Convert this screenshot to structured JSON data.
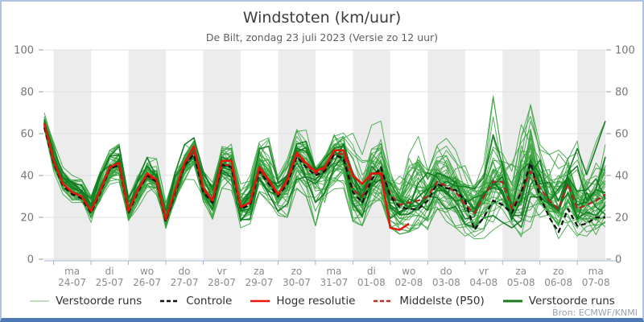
{
  "window": {
    "title": "Windstoten (km/uur)",
    "subtitle": "De Bilt, zondag 23 juli 2023 (Versie zo 12 uur)",
    "source": "Bron: ECMWF/KNMI"
  },
  "legend": {
    "items": [
      {
        "label": "Verstoorde runs",
        "color": "#aed6a8",
        "dash": "",
        "width": 1.5
      },
      {
        "label": "Controle",
        "color": "#111111",
        "dash": "5 3",
        "width": 2.5
      },
      {
        "label": "Hoge resolutie",
        "color": "#e8150c",
        "dash": "",
        "width": 2.5
      },
      {
        "label": "Middelste (P50)",
        "color": "#a93226",
        "dash": "5 3",
        "width": 2.5
      },
      {
        "label": "Verstoorde runs",
        "color": "#1a7a1e",
        "dash": "",
        "width": 3
      }
    ]
  },
  "colors": {
    "ensemble_light": "#36a23d",
    "ensemble_dark": "#107a20",
    "hres": "#e8150c",
    "controle": "#111111",
    "p50": "#b22222",
    "band": "#ececec",
    "grid": "#e0e0e0",
    "axis_line": "#b3c6dd",
    "tick": "#9db3cc",
    "ylabel": "#767676",
    "xlabel": "#8a8a8a"
  },
  "chart_data": {
    "type": "line",
    "title": "Windstoten (km/uur)",
    "subtitle": "De Bilt, zondag 23 juli 2023 (Versie zo 12 uur)",
    "ylabel": "",
    "xlabel": "",
    "ylim": [
      0,
      100
    ],
    "y_ticks": [
      0,
      20,
      40,
      60,
      80,
      100
    ],
    "grid": true,
    "legend_position": "bottom",
    "time_step_hours": 6,
    "points_per_series": 61,
    "days": [
      {
        "dow": "ma",
        "date": "24-07",
        "shaded": true
      },
      {
        "dow": "di",
        "date": "25-07",
        "shaded": false
      },
      {
        "dow": "wo",
        "date": "26-07",
        "shaded": true
      },
      {
        "dow": "do",
        "date": "27-07",
        "shaded": false
      },
      {
        "dow": "vr",
        "date": "28-07",
        "shaded": true
      },
      {
        "dow": "za",
        "date": "29-07",
        "shaded": false
      },
      {
        "dow": "zo",
        "date": "30-07",
        "shaded": true
      },
      {
        "dow": "ma",
        "date": "31-07",
        "shaded": false
      },
      {
        "dow": "di",
        "date": "01-08",
        "shaded": true
      },
      {
        "dow": "wo",
        "date": "02-08",
        "shaded": false
      },
      {
        "dow": "do",
        "date": "03-08",
        "shaded": true
      },
      {
        "dow": "vr",
        "date": "04-08",
        "shaded": false
      },
      {
        "dow": "za",
        "date": "05-08",
        "shaded": true
      },
      {
        "dow": "zo",
        "date": "06-08",
        "shaded": false
      },
      {
        "dow": "ma",
        "date": "07-08",
        "shaded": true
      }
    ],
    "series": {
      "hoge_resolutie": {
        "name": "Hoge resolutie",
        "values": [
          65,
          47,
          36,
          32,
          30,
          23,
          33,
          44,
          46,
          23,
          33,
          41,
          38,
          19,
          33,
          46,
          54,
          34,
          28,
          47,
          47,
          25,
          27,
          44,
          38,
          31,
          38,
          51,
          46,
          42,
          44,
          52,
          52,
          40,
          36,
          41,
          41,
          15,
          14,
          17
        ]
      },
      "controle": {
        "name": "Controle",
        "values": [
          63,
          46,
          35,
          31,
          29,
          22,
          32,
          43,
          45,
          22,
          32,
          40,
          37,
          18,
          32,
          45,
          50,
          32,
          27,
          45,
          44,
          24,
          26,
          42,
          36,
          30,
          36,
          49,
          44,
          40,
          42,
          50,
          48,
          32,
          27,
          38,
          44,
          30,
          25,
          24,
          24,
          28,
          36,
          34,
          33,
          28,
          14,
          20,
          28,
          26,
          22,
          32,
          46,
          30,
          20,
          13,
          24,
          16,
          17,
          20,
          20
        ]
      },
      "middelste_p50": {
        "name": "Middelste (P50)",
        "values": [
          64,
          47,
          36,
          32,
          30,
          23,
          33,
          43,
          45,
          23,
          33,
          40,
          37,
          19,
          33,
          45,
          51,
          33,
          28,
          45,
          45,
          25,
          27,
          43,
          37,
          31,
          37,
          50,
          45,
          41,
          43,
          51,
          50,
          33,
          30,
          40,
          42,
          31,
          26,
          27,
          28,
          30,
          37,
          35,
          32,
          26,
          22,
          30,
          37,
          37,
          24,
          32,
          42,
          34,
          28,
          24,
          36,
          24,
          26,
          28,
          31
        ]
      },
      "ensemble": {
        "name": "Verstoorde runs",
        "count": 50,
        "env_max": [
          70,
          56,
          44,
          40,
          38,
          30,
          42,
          52,
          55,
          30,
          42,
          50,
          48,
          28,
          44,
          56,
          58,
          42,
          38,
          56,
          55,
          36,
          40,
          56,
          58,
          42,
          48,
          62,
          62,
          46,
          52,
          64,
          66,
          67,
          50,
          64,
          66,
          48,
          44,
          58,
          62,
          46,
          56,
          60,
          52,
          46,
          42,
          46,
          78,
          60,
          62,
          82,
          80,
          60,
          50,
          58,
          50,
          64,
          50,
          56,
          66
        ],
        "env_min": [
          62,
          42,
          31,
          27,
          25,
          16,
          25,
          35,
          37,
          15,
          23,
          32,
          28,
          12,
          24,
          35,
          38,
          23,
          19,
          34,
          33,
          15,
          17,
          32,
          27,
          18,
          20,
          31,
          30,
          16,
          21,
          33,
          34,
          18,
          16,
          26,
          28,
          15,
          12,
          13,
          15,
          14,
          20,
          18,
          15,
          11,
          9,
          10,
          14,
          17,
          15,
          10,
          14,
          19,
          16,
          9,
          8,
          11,
          11,
          9,
          12
        ]
      }
    }
  }
}
